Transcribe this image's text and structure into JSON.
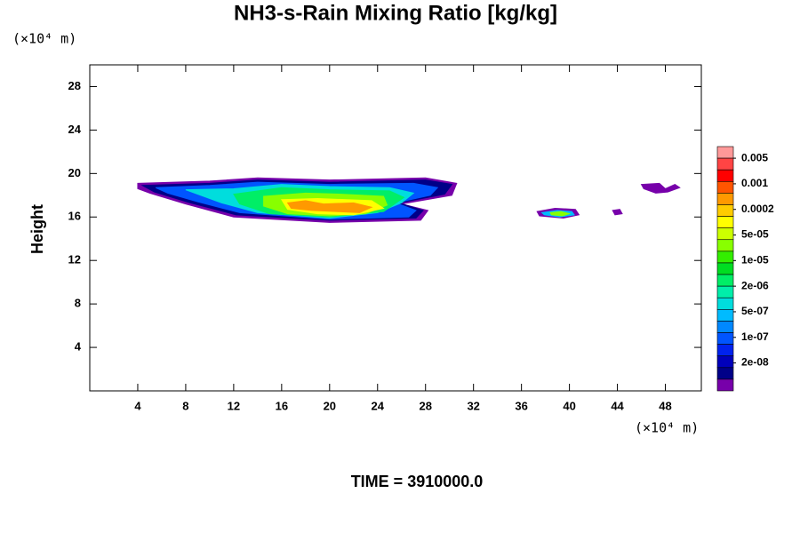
{
  "chart_data": {
    "type": "contour",
    "title": "NH3-s-Rain Mixing Ratio [kg/kg]",
    "ylabel": "Height",
    "x_unit": "(×10⁴ m)",
    "y_unit": "(×10⁴ m)",
    "footer": "TIME = 3910000.0",
    "xlim": [
      0,
      51
    ],
    "ylim": [
      0,
      30
    ],
    "xticks": [
      4,
      8,
      12,
      16,
      20,
      24,
      28,
      32,
      36,
      40,
      44,
      48
    ],
    "yticks": [
      4,
      8,
      12,
      16,
      20,
      24,
      28
    ],
    "colorbar": {
      "colors": [
        "#ff9999",
        "#ff4444",
        "#ff0000",
        "#ff5500",
        "#ff9900",
        "#ffcc00",
        "#ffff00",
        "#ccff00",
        "#88ff00",
        "#33ee00",
        "#00dd22",
        "#00ee66",
        "#00eeaa",
        "#00dddd",
        "#00bbff",
        "#0088ff",
        "#0055ff",
        "#0022ee",
        "#0000bb",
        "#000088",
        "#7700aa"
      ],
      "ticks": [
        0.005,
        0.001,
        0.0002,
        {
          "value": 5e-05,
          "label": "5e-05"
        },
        {
          "value": 1e-05,
          "label": "1e-05"
        },
        {
          "value": 2e-06,
          "label": "2e-06"
        },
        {
          "value": 5e-07,
          "label": "5e-07"
        },
        {
          "value": 1e-07,
          "label": "1e-07"
        },
        {
          "value": 2e-08,
          "label": "2e-08"
        }
      ]
    },
    "regions": [
      {
        "value": 1e-08,
        "color": "#7700aa",
        "x": [
          4,
          10,
          14,
          20,
          28,
          30.6,
          30.2,
          26,
          28.2,
          27.6,
          20,
          12,
          8,
          5,
          4
        ],
        "y": [
          19.1,
          19.3,
          19.6,
          19.4,
          19.6,
          19.1,
          18,
          17.2,
          16.6,
          15.7,
          15.5,
          16,
          17.2,
          18.2,
          18.6
        ]
      },
      {
        "value": 4e-08,
        "color": "#000088",
        "x": [
          4.4,
          10,
          14,
          20,
          28,
          30.2,
          29.6,
          25.8,
          27.8,
          27.2,
          20,
          12.2,
          8.4,
          5.4
        ],
        "y": [
          18.9,
          19.1,
          19.4,
          19.2,
          19.4,
          19,
          18.1,
          17.3,
          16.6,
          15.9,
          15.7,
          16.2,
          17.3,
          18.3
        ]
      },
      {
        "value": 2e-07,
        "color": "#0055ff",
        "x": [
          5.5,
          10,
          14,
          20,
          27,
          29,
          28.4,
          25.5,
          27.2,
          26.6,
          20,
          12.5,
          9,
          6.5
        ],
        "y": [
          18.7,
          18.9,
          19.2,
          19,
          19.1,
          18.7,
          18,
          17.3,
          16.6,
          16,
          15.8,
          16.4,
          17.4,
          18.2
        ]
      },
      {
        "value": 1e-06,
        "color": "#00dddd",
        "x": [
          8,
          12,
          16,
          20,
          25,
          27,
          26,
          24,
          20,
          14,
          11
        ],
        "y": [
          18.5,
          18.6,
          19,
          18.8,
          18.7,
          18.2,
          17.3,
          16.4,
          15.9,
          16.4,
          17.3
        ]
      },
      {
        "value": 5e-06,
        "color": "#00ee66",
        "x": [
          12,
          16,
          20,
          25,
          26.2,
          24.5,
          20,
          15,
          12.5
        ],
        "y": [
          18.1,
          18.7,
          18.5,
          18.4,
          17.8,
          16.5,
          16,
          16.3,
          17.2
        ]
      },
      {
        "value": 3e-05,
        "color": "#88ff00",
        "x": [
          14.5,
          18,
          21,
          24.5,
          24.8,
          23,
          20,
          16.5,
          14.5
        ],
        "y": [
          17.9,
          18.2,
          18.1,
          17.9,
          17.1,
          16.3,
          16.1,
          16.3,
          17
        ]
      },
      {
        "value": 0.0001,
        "color": "#ffff00",
        "x": [
          16,
          19,
          23.5,
          24.5,
          22,
          19,
          16.5
        ],
        "y": [
          17.6,
          17.7,
          17.5,
          16.8,
          16.2,
          16.3,
          16.7
        ]
      },
      {
        "value": 0.0005,
        "color": "#ff9900",
        "x": [
          16.5,
          18,
          19.5,
          22,
          23.5,
          22.5,
          20.5,
          18.5,
          16.8
        ],
        "y": [
          17.3,
          17.5,
          17.2,
          17.3,
          16.9,
          16.4,
          16.5,
          16.6,
          16.8
        ]
      },
      {
        "value": 1e-08,
        "color": "#7700aa",
        "x": [
          37.3,
          38.8,
          40.5,
          40.8,
          39.5,
          37.5
        ],
        "y": [
          16.5,
          16.8,
          16.7,
          16.2,
          15.9,
          16.1
        ]
      },
      {
        "value": 5e-07,
        "color": "#00bbff",
        "x": [
          37.7,
          39,
          40.2,
          40.4,
          39.2,
          37.9
        ],
        "y": [
          16.4,
          16.6,
          16.5,
          16.2,
          16,
          16.2
        ]
      },
      {
        "value": 3e-05,
        "color": "#88ff00",
        "x": [
          38.4,
          39.3,
          40,
          39.4,
          38.5
        ],
        "y": [
          16.4,
          16.5,
          16.3,
          16.1,
          16.2
        ]
      },
      {
        "value": 1e-08,
        "color": "#7700aa",
        "x": [
          43.6,
          44.2,
          44.4,
          43.8
        ],
        "y": [
          16.6,
          16.7,
          16.3,
          16.2
        ]
      },
      {
        "value": 1e-08,
        "color": "#7700aa",
        "x": [
          46,
          47.5,
          48,
          48.8,
          49.2,
          48.2,
          47.2,
          46.2
        ],
        "y": [
          19,
          19.1,
          18.6,
          19,
          18.7,
          18.3,
          18.2,
          18.6
        ]
      }
    ]
  }
}
